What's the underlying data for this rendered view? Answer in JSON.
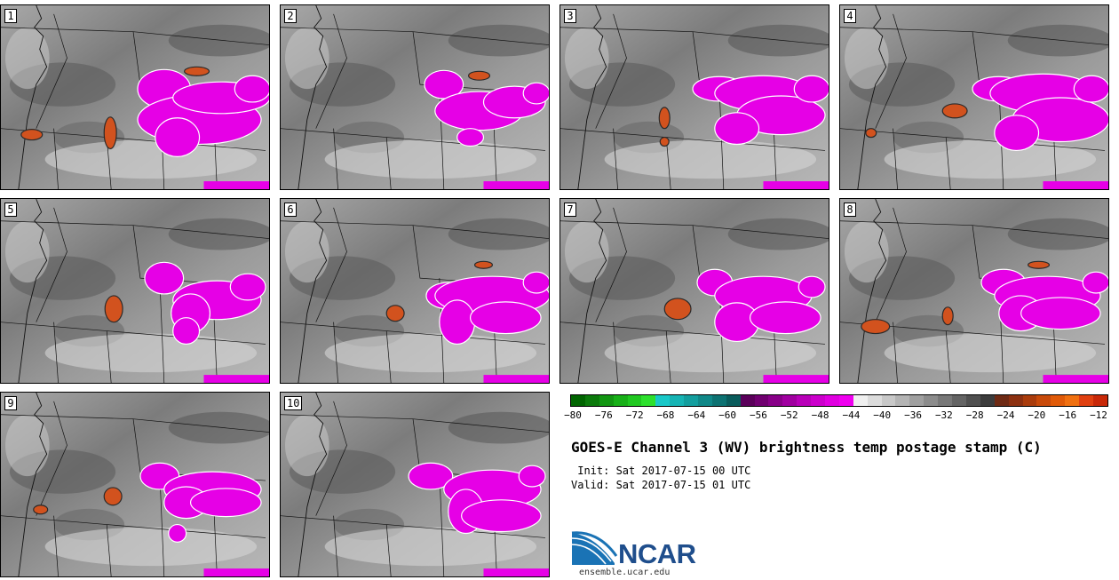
{
  "stamps": [
    {
      "label": "1"
    },
    {
      "label": "2"
    },
    {
      "label": "3"
    },
    {
      "label": "4"
    },
    {
      "label": "5"
    },
    {
      "label": "6"
    },
    {
      "label": "7"
    },
    {
      "label": "8"
    },
    {
      "label": "9"
    },
    {
      "label": "10"
    }
  ],
  "colorbar": {
    "ticks": [
      "−80",
      "−76",
      "−72",
      "−68",
      "−64",
      "−60",
      "−56",
      "−52",
      "−48",
      "−44",
      "−40",
      "−36",
      "−32",
      "−28",
      "−24",
      "−20",
      "−16",
      "−12"
    ],
    "colors": [
      "#006400",
      "#0b7a0b",
      "#129612",
      "#18b018",
      "#20c820",
      "#2de02d",
      "#19c8c8",
      "#16b4b4",
      "#139e9e",
      "#108888",
      "#0d7272",
      "#0a5c5c",
      "#5a005a",
      "#700070",
      "#880088",
      "#a000a0",
      "#b800b8",
      "#cc00cc",
      "#e000e0",
      "#f000f0",
      "#f0f0f0",
      "#dcdcdc",
      "#c8c8c8",
      "#b4b4b4",
      "#a0a0a0",
      "#8c8c8c",
      "#787878",
      "#646464",
      "#505050",
      "#3c3c3c",
      "#6e2a14",
      "#8c3010",
      "#aa3c0c",
      "#c84a0a",
      "#e05a08",
      "#f07010",
      "#e04010",
      "#c82808"
    ]
  },
  "title": "GOES-E Channel 3 (WV) brightness temp postage stamp (C)",
  "init": " Init: Sat 2017-07-15 00 UTC",
  "valid": "Valid: Sat 2017-07-15 01 UTC",
  "logo": {
    "text": "NCAR",
    "url": "ensemble.ucar.edu",
    "color": "#1f4e8c"
  },
  "colors": {
    "magenta": "#e600e6",
    "orange": "#d2521e",
    "gray": "#8a8a8a"
  }
}
